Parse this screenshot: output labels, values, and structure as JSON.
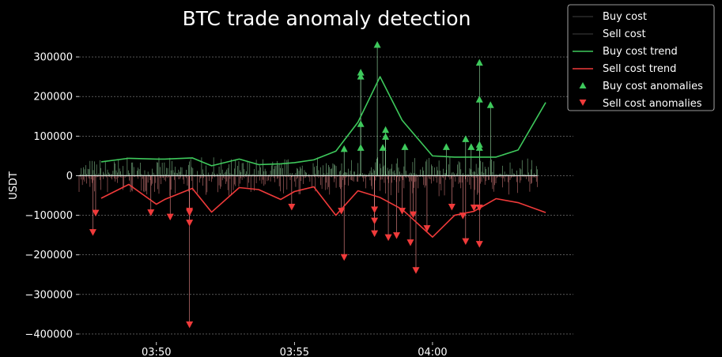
{
  "chart_data": {
    "type": "line",
    "title": "BTC trade anomaly detection",
    "xlabel": "",
    "ylabel": "USDT",
    "x_unit": "minutes after 03:47:00",
    "xlim": [
      0.0,
      17.9
    ],
    "ylim": [
      -420000,
      340000
    ],
    "y_ticks": [
      -400000,
      -300000,
      -200000,
      -100000,
      0,
      100000,
      200000,
      300000
    ],
    "y_tick_labels": [
      "−400000",
      "−300000",
      "−200000",
      "−100000",
      "0",
      "100000",
      "200000",
      "300000"
    ],
    "x_ticks": [
      2.8,
      7.8,
      12.8
    ],
    "x_tick_labels": [
      "03:50",
      "03:55",
      "04:00"
    ],
    "grid": "horizontal dashed",
    "legend_position": "outside top-right",
    "colors": {
      "buy_trend": "#3ec95c",
      "sell_trend": "#f03a3a",
      "buy_spikes": "#9be3a8",
      "sell_spikes": "#f08c8c",
      "raw_cost": "#2a2a2a"
    },
    "series": [
      {
        "name": "Buy cost",
        "kind": "raw",
        "note_x": [
          0.0,
          16.6
        ],
        "values": [
          0,
          0
        ]
      },
      {
        "name": "Sell cost",
        "kind": "raw",
        "note_x": [
          0.0,
          16.6
        ],
        "values": [
          0,
          0
        ]
      },
      {
        "name": "Buy cost trend",
        "kind": "line",
        "x": [
          0.8,
          1.8,
          2.8,
          3.1,
          4.1,
          4.8,
          5.8,
          6.5,
          7.3,
          7.8,
          8.5,
          9.3,
          10.1,
          10.9,
          11.7,
          12.8,
          13.6,
          14.3,
          15.1,
          15.9,
          16.9
        ],
        "values": [
          35000,
          44000,
          42000,
          42000,
          45000,
          25000,
          42000,
          28000,
          30000,
          33000,
          40000,
          62000,
          135000,
          250000,
          140000,
          50000,
          47000,
          47000,
          47000,
          65000,
          185000
        ]
      },
      {
        "name": "Sell cost trend",
        "kind": "line",
        "x": [
          0.8,
          1.8,
          2.8,
          3.1,
          4.1,
          4.8,
          5.8,
          6.5,
          7.3,
          7.8,
          8.5,
          9.3,
          10.1,
          10.9,
          11.7,
          12.8,
          13.6,
          14.3,
          15.1,
          15.9,
          16.9
        ],
        "values": [
          -57000,
          -22000,
          -72000,
          -60000,
          -32000,
          -92000,
          -30000,
          -35000,
          -60000,
          -40000,
          -28000,
          -100000,
          -38000,
          -55000,
          -85000,
          -155000,
          -100000,
          -90000,
          -58000,
          -68000,
          -93000
        ]
      },
      {
        "name": "Buy cost anomalies",
        "kind": "scatter",
        "x": [
          9.6,
          10.2,
          10.2,
          10.2,
          10.2,
          10.8,
          11.0,
          11.1,
          11.1,
          11.8,
          13.3,
          14.0,
          14.2,
          14.5,
          14.5,
          14.5,
          14.5,
          14.9
        ],
        "values": [
          67000,
          260000,
          250000,
          130000,
          70000,
          330000,
          70000,
          115000,
          98000,
          72000,
          72000,
          92000,
          72000,
          285000,
          192000,
          78000,
          70000,
          178000
        ]
      },
      {
        "name": "Sell cost anomalies",
        "kind": "scatter",
        "x": [
          0.5,
          0.6,
          2.6,
          3.3,
          4.0,
          4.0,
          4.0,
          4.0,
          7.7,
          9.5,
          9.6,
          10.7,
          10.7,
          10.7,
          11.2,
          11.5,
          11.7,
          12.0,
          12.1,
          12.2,
          12.6,
          13.5,
          13.9,
          14.0,
          14.3,
          14.5,
          14.5
        ],
        "values": [
          -142000,
          -93000,
          -92000,
          -103000,
          -88000,
          -92000,
          -118000,
          -375000,
          -78000,
          -88000,
          -205000,
          -85000,
          -113000,
          -145000,
          -155000,
          -150000,
          -88000,
          -168000,
          -97000,
          -238000,
          -132000,
          -78000,
          -100000,
          -165000,
          -80000,
          -80000,
          -172000
        ]
      }
    ]
  }
}
